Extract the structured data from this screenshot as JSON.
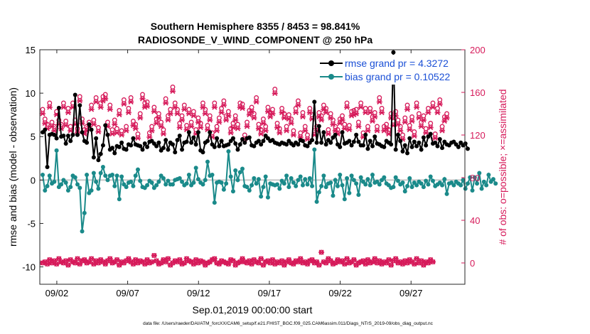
{
  "chart_data": {
    "type": "line",
    "title": [
      "Southern Hemisphere 8355 / 8453 = 98.841%",
      "RADIOSONDE_V_WIND_COMPONENT @ 250 hPa"
    ],
    "xlabel": "Sep.01,2019 00:00:00 start",
    "ylabel_left": "rmse and bias (model - observation)",
    "ylabel_right": "# of obs: o=possible; ×=assimilated",
    "footnote": "data file: /Users/raeder/DAI/ATM_forcXX/CAM6_setup/f.e21.FHIST_BGC.f09_025.CAM6assim.011/Diags_NTrS_2019-09/obs_diag_output.nc",
    "xlim": [
      0.8,
      30.8
    ],
    "ylim_left": [
      -12,
      15
    ],
    "ylim_right": [
      -20,
      200
    ],
    "x_ticks": [
      2,
      7,
      12,
      17,
      22,
      27
    ],
    "x_tick_labels": [
      "09/02",
      "09/07",
      "09/12",
      "09/17",
      "09/22",
      "09/27"
    ],
    "y_left_ticks": [
      -10,
      -5,
      0,
      5,
      10,
      15
    ],
    "y_right_ticks": [
      0,
      40,
      80,
      120,
      160,
      200
    ],
    "colors": {
      "rmse": "#000000",
      "bias": "#1a8a8a",
      "obs": "#d61a5a",
      "legend_text": "#1a4fd6",
      "zero_line": "#c8c8c8"
    },
    "legend": {
      "placement": "top-right",
      "entries": [
        "rmse grand pr = 4.3272",
        "bias grand pr = 0.10522"
      ]
    },
    "series": [
      {
        "name": "rmse",
        "values": [
          5.5,
          5.8,
          1.5,
          5.2,
          5.3,
          5.2,
          4.8,
          8.3,
          5.0,
          5.1,
          4.2,
          5.1,
          4.5,
          5.2,
          9.8,
          5.2,
          8.6,
          5.5,
          4.5,
          4.3,
          6.4,
          5.8,
          2.6,
          4.8,
          2.3,
          3.0,
          4.0,
          6.3,
          5.2,
          3.5,
          3.7,
          3.1,
          3.9,
          3.8,
          4.3,
          3.6,
          3.5,
          4.1,
          4.0,
          4.8,
          4.1,
          4.0,
          3.9,
          3.5,
          4.2,
          3.8,
          4.4,
          4.5,
          4.2,
          3.9,
          4.3,
          3.4,
          3.7,
          4.6,
          3.5,
          4.3,
          4.1,
          3.2,
          4.6,
          5.1,
          3.5,
          4.3,
          4.4,
          5.5,
          4.3,
          4.9,
          4.1,
          5.5,
          3.4,
          3.2,
          4.3,
          4.5,
          5.5,
          4.1,
          3.8,
          4.8,
          3.9,
          4.5,
          3.9,
          4.0,
          4.1,
          4.5,
          4.8,
          4.2,
          3.5,
          4.1,
          4.7,
          4.3,
          4.8,
          4.9,
          4.0,
          3.9,
          4.3,
          4.5,
          4.1,
          4.5,
          5.1,
          4.8,
          4.5,
          4.6,
          4.3,
          4.2,
          4.1,
          4.3,
          4.2,
          4.1,
          4.5,
          4.2,
          4.0,
          4.3,
          4.1,
          4.6,
          4.5,
          4.0,
          3.9,
          4.3,
          4.6,
          9.0,
          4.3,
          6.2,
          4.3,
          5.5,
          4.1,
          4.6,
          4.3,
          4.9,
          5.2,
          4.1,
          3.8,
          5.5,
          4.2,
          4.3,
          4.5,
          4.0,
          4.4,
          5.2,
          4.4,
          4.0,
          4.0,
          5.2,
          3.6,
          4.5,
          3.9,
          5.0,
          4.2,
          4.1,
          3.9,
          3.8,
          4.5,
          4.3,
          4.1,
          14.7,
          3.5,
          5.2,
          4.5,
          3.3,
          4.0,
          3.1,
          4.8,
          3.8,
          4.4,
          3.9,
          4.3,
          3.5,
          4.9,
          4.0,
          5.0,
          5.3,
          4.2,
          4.3,
          3.9,
          4.7,
          3.7,
          4.4,
          4.1,
          4.0,
          4.3,
          4.4,
          4.1,
          3.8,
          4.3,
          4.0,
          4.2,
          3.6
        ]
      },
      {
        "name": "bias",
        "values": [
          0.6,
          -1.2,
          -0.7,
          0.5,
          -0.4,
          -0.2,
          3.4,
          -0.8,
          -0.5,
          0.0,
          -0.3,
          -1.2,
          -0.8,
          0.5,
          0.3,
          -0.5,
          -0.9,
          -5.9,
          -3.8,
          0.6,
          -1.5,
          -1.2,
          0.8,
          -0.2,
          -1.0,
          0.8,
          1.5,
          0.5,
          0.0,
          0.5,
          0.6,
          -0.7,
          0.5,
          -2.2,
          0.4,
          -0.5,
          -0.8,
          -0.3,
          -0.2,
          -0.7,
          0.5,
          1.2,
          -0.1,
          -0.8,
          -0.9,
          -0.6,
          -0.1,
          -0.3,
          -0.9,
          -0.6,
          -0.2,
          0.5,
          0.2,
          -0.5,
          -0.1,
          -0.5,
          -0.5,
          0.0,
          0.1,
          0.2,
          -0.2,
          -0.6,
          -0.4,
          0.6,
          -0.6,
          -0.3,
          1.4,
          0.1,
          -0.3,
          -0.5,
          0.0,
          2.1,
          0.5,
          0.6,
          -2.6,
          -0.3,
          -0.2,
          -0.3,
          -1.1,
          -0.4,
          3.3,
          0.4,
          -1.3,
          1.1,
          0.0,
          0.9,
          1.3,
          -0.7,
          -0.8,
          -1.2,
          -0.6,
          0.2,
          -0.4,
          0.1,
          -1.9,
          -0.8,
          0.4,
          -2.0,
          -0.4,
          -0.5,
          -0.6,
          -0.5,
          -1.0,
          -0.1,
          -0.4,
          0.5,
          -0.8,
          0.2,
          -0.3,
          -0.7,
          0.0,
          0.4,
          -0.6,
          0.1,
          -0.5,
          0.2,
          -0.7,
          3.5,
          -2.5,
          -1.4,
          -0.7,
          0.5,
          -0.8,
          -0.4,
          -0.3,
          -1.8,
          0.0,
          -0.7,
          0.6,
          -0.6,
          -2.2,
          0.2,
          -1.5,
          0.5,
          0.0,
          -0.4,
          -1.7,
          0.3,
          -0.2,
          -0.5,
          0.1,
          -0.6,
          0.6,
          -0.3,
          -0.2,
          -0.5,
          0.0,
          0.3,
          -0.4,
          -0.6,
          -0.9,
          -0.8,
          0.3,
          -0.1,
          -0.5,
          -0.3,
          -1.3,
          -0.7,
          0.2,
          -0.8,
          -0.3,
          -0.6,
          -0.2,
          -0.4,
          -0.8,
          -0.1,
          -0.5,
          0.4,
          -0.1,
          -0.7,
          -0.5,
          -0.3,
          -0.6,
          0.1,
          -1.6,
          -0.4,
          -0.3,
          -0.6,
          -0.2,
          -0.4,
          -0.6,
          0.0,
          -1.0,
          -0.4,
          0.3,
          -1.2,
          0.3,
          -0.4,
          0.8,
          -1.0,
          -0.2,
          -0.6,
          0.6,
          -0.2,
          0.1,
          -0.4
        ]
      },
      {
        "name": "obs_possible",
        "values": [
          144,
          135,
          130,
          150,
          132,
          128,
          142,
          134,
          130,
          150,
          133,
          145,
          128,
          150,
          134,
          126,
          156,
          135,
          125,
          128,
          132,
          148,
          134,
          155,
          127,
          150,
          156,
          158,
          132,
          148,
          125,
          134,
          126,
          143,
          124,
          153,
          128,
          145,
          155,
          133,
          130,
          121,
          140,
          158,
          150,
          151,
          122,
          128,
          146,
          135,
          140,
          132,
          125,
          154,
          138,
          144,
          165,
          150,
          144,
          131,
          138,
          148,
          129,
          144,
          132,
          142,
          125,
          136,
          131,
          150,
          144,
          129,
          138,
          122,
          150,
          128,
          136,
          145,
          152,
          138,
          142,
          126,
          131,
          138,
          130,
          150,
          149,
          120,
          132,
          143,
          146,
          140,
          155,
          130,
          125,
          135,
          128,
          146,
          141,
          144,
          163,
          131,
          126,
          145,
          140,
          128,
          139,
          135,
          124,
          145,
          152,
          122,
          141,
          128,
          120,
          145,
          139,
          124,
          128,
          141,
          138,
          148,
          145,
          125,
          140,
          134,
          128,
          125,
          135,
          138,
          130,
          150,
          129,
          142,
          143,
          144,
          132,
          150,
          122,
          145,
          128,
          145,
          137,
          141,
          128,
          155,
          145,
          128,
          130,
          125,
          140,
          133,
          142,
          134,
          128,
          120,
          136,
          148,
          129,
          137,
          123,
          150,
          140,
          132,
          138,
          126,
          145,
          131,
          150,
          121,
          145,
          153,
          128,
          137,
          140
        ]
      },
      {
        "name": "obs_assimilated",
        "values": [
          140,
          131,
          126,
          146,
          128,
          124,
          139,
          130,
          126,
          146,
          129,
          141,
          124,
          146,
          130,
          122,
          152,
          131,
          121,
          124,
          128,
          144,
          130,
          151,
          123,
          146,
          152,
          154,
          128,
          144,
          121,
          130,
          122,
          139,
          120,
          149,
          124,
          141,
          151,
          129,
          126,
          117,
          136,
          154,
          146,
          147,
          118,
          124,
          142,
          131,
          136,
          128,
          121,
          150,
          134,
          140,
          161,
          146,
          140,
          127,
          134,
          144,
          125,
          140,
          128,
          138,
          121,
          132,
          127,
          146,
          140,
          125,
          134,
          118,
          146,
          124,
          132,
          141,
          148,
          134,
          138,
          122,
          127,
          134,
          126,
          146,
          145,
          116,
          128,
          139,
          142,
          136,
          151,
          126,
          121,
          131,
          124,
          142,
          137,
          140,
          159,
          127,
          122,
          141,
          136,
          124,
          135,
          131,
          120,
          141,
          148,
          118,
          137,
          124,
          116,
          141,
          135,
          120,
          124,
          137,
          134,
          144,
          141,
          121,
          136,
          130,
          124,
          121,
          131,
          134,
          126,
          146,
          125,
          138,
          139,
          140,
          128,
          146,
          118,
          141,
          124,
          141,
          133,
          137,
          124,
          151,
          141,
          124,
          126,
          121,
          136,
          129,
          138,
          130,
          124,
          116,
          132,
          144,
          125,
          133,
          119,
          146,
          136,
          128,
          134,
          122,
          141,
          127,
          146,
          117,
          141,
          149,
          124,
          133,
          136
        ]
      },
      {
        "name": "obs_count_near_zero_possible",
        "values": [
          0,
          1,
          -1,
          3,
          0,
          2,
          -1,
          4,
          1,
          0,
          2,
          -2,
          3,
          1,
          0,
          4,
          -1,
          2,
          3,
          0,
          1,
          4,
          -1,
          2,
          0,
          3,
          1,
          -1,
          2,
          4,
          0,
          1,
          3,
          -2,
          1,
          0,
          2,
          4,
          1,
          -1,
          3,
          0,
          2,
          1,
          -1,
          3,
          0,
          1,
          7,
          2,
          -1,
          0,
          3,
          1,
          4,
          -2,
          0,
          2,
          1,
          3,
          -1,
          0,
          4,
          2,
          1,
          -1,
          3,
          0,
          2,
          1,
          -2,
          0,
          1,
          3,
          4,
          0,
          -1,
          2,
          1,
          0,
          -1,
          3,
          2,
          -2,
          0,
          1,
          4,
          1,
          0,
          2,
          -1,
          3,
          1,
          0,
          4,
          -2,
          1,
          2,
          0,
          3,
          -1,
          1,
          0,
          2,
          -2,
          1,
          3,
          0,
          -1,
          2,
          1,
          4,
          0,
          1,
          -1,
          2,
          3,
          0,
          1,
          -2,
          10,
          1,
          0,
          4,
          2,
          -1,
          0,
          3,
          1,
          2,
          -1,
          4,
          0,
          1,
          3,
          -2,
          0,
          1,
          2,
          -1,
          3,
          0,
          1,
          4,
          0,
          2,
          -1,
          1,
          0,
          3,
          -2,
          2,
          4,
          0,
          1,
          -1,
          2,
          0,
          3,
          1,
          -1,
          4,
          0,
          2,
          -2,
          1,
          0,
          3,
          1
        ]
      }
    ]
  }
}
